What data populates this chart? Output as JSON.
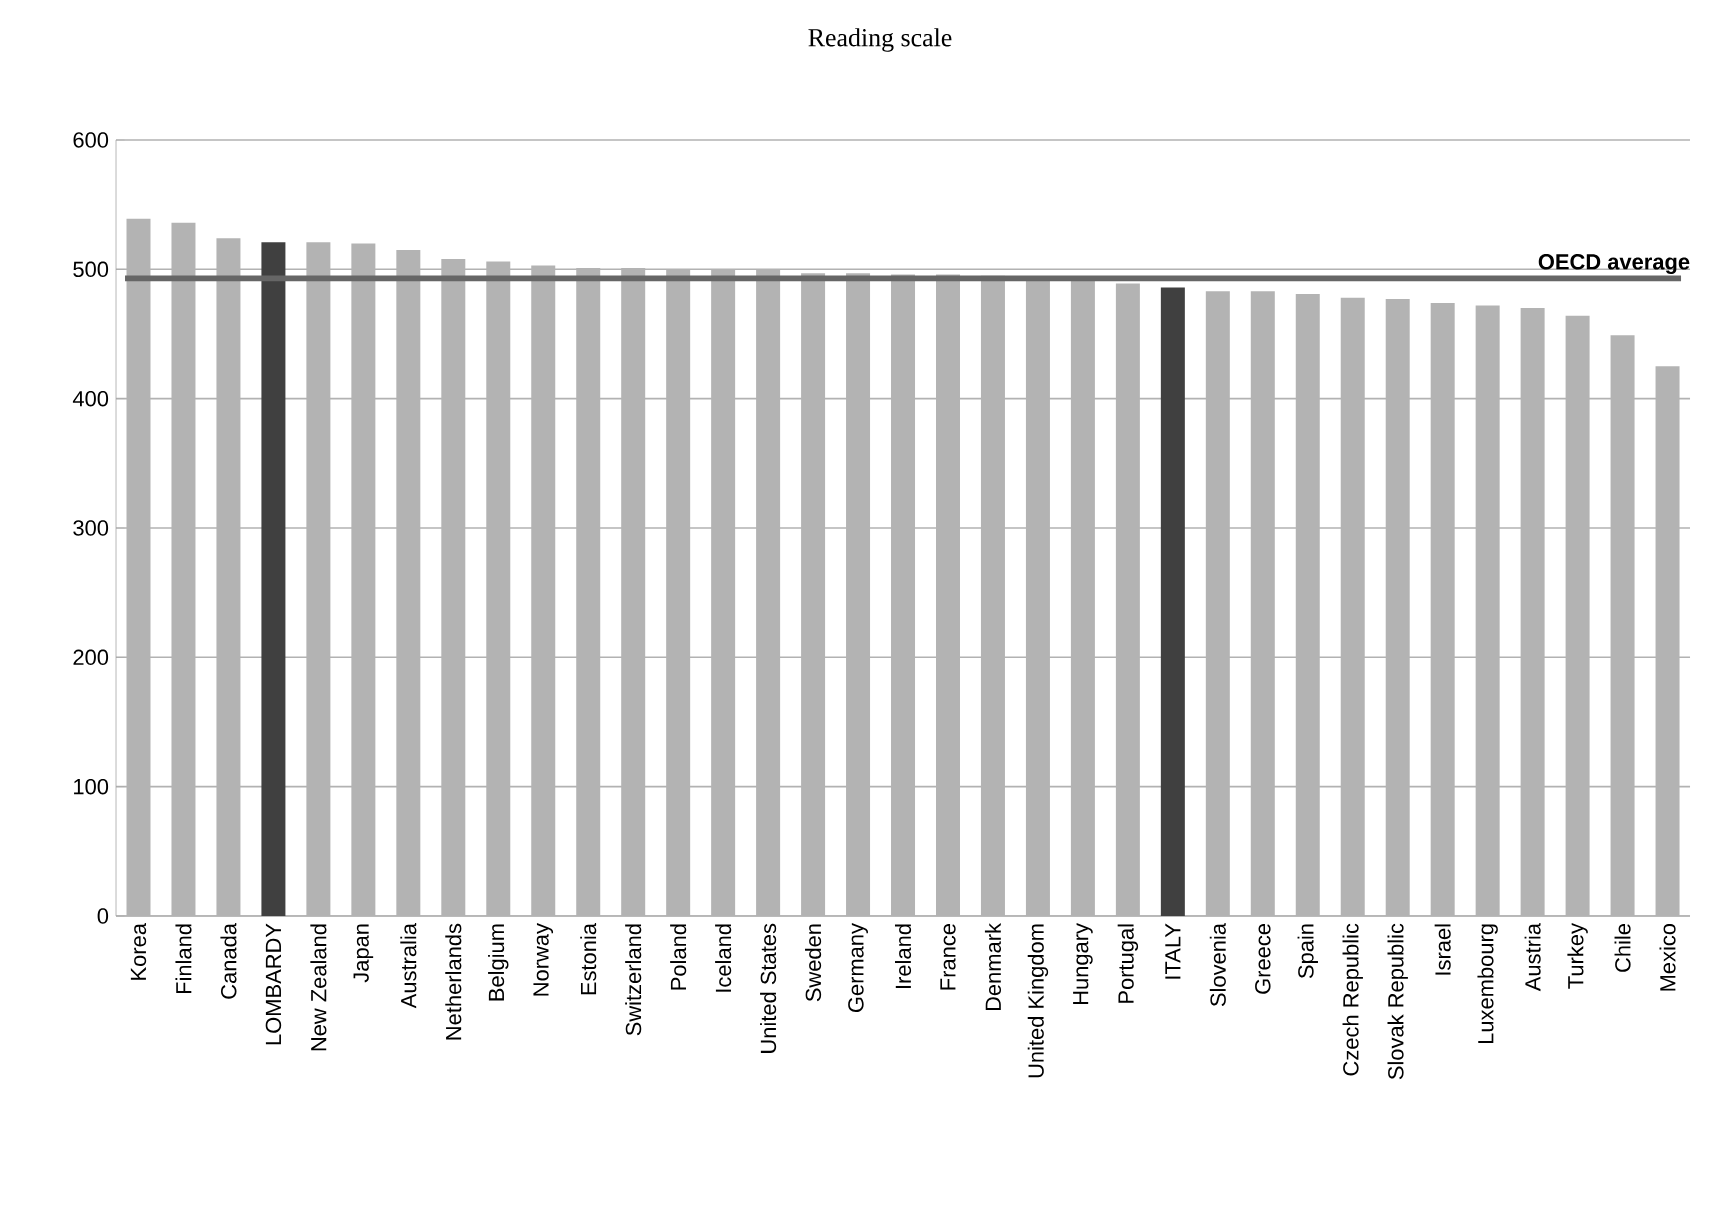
{
  "chart_data": {
    "type": "bar",
    "title": "Reading scale",
    "categories": [
      "Korea",
      "Finland",
      "Canada",
      "LOMBARDY",
      "New Zealand",
      "Japan",
      "Australia",
      "Netherlands",
      "Belgium",
      "Norway",
      "Estonia",
      "Switzerland",
      "Poland",
      "Iceland",
      "United States",
      "Sweden",
      "Germany",
      "Ireland",
      "France",
      "Denmark",
      "United Kingdom",
      "Hungary",
      "Portugal",
      "ITALY",
      "Slovenia",
      "Greece",
      "Spain",
      "Czech Republic",
      "Slovak Republic",
      "Israel",
      "Luxembourg",
      "Austria",
      "Turkey",
      "Chile",
      "Mexico"
    ],
    "values": [
      539,
      536,
      524,
      521,
      521,
      520,
      515,
      508,
      506,
      503,
      501,
      501,
      500,
      500,
      500,
      497,
      497,
      496,
      496,
      495,
      494,
      494,
      489,
      486,
      483,
      483,
      481,
      478,
      477,
      474,
      472,
      470,
      464,
      449,
      425
    ],
    "colors": [
      "#b3b3b3",
      "#b3b3b3",
      "#b3b3b3",
      "#404040",
      "#b3b3b3",
      "#b3b3b3",
      "#b3b3b3",
      "#b3b3b3",
      "#b3b3b3",
      "#b3b3b3",
      "#b3b3b3",
      "#b3b3b3",
      "#b3b3b3",
      "#b3b3b3",
      "#b3b3b3",
      "#b3b3b3",
      "#b3b3b3",
      "#b3b3b3",
      "#b3b3b3",
      "#b3b3b3",
      "#b3b3b3",
      "#b3b3b3",
      "#b3b3b3",
      "#404040",
      "#b3b3b3",
      "#b3b3b3",
      "#b3b3b3",
      "#b3b3b3",
      "#b3b3b3",
      "#b3b3b3",
      "#b3b3b3",
      "#b3b3b3",
      "#b3b3b3",
      "#b3b3b3",
      "#b3b3b3"
    ],
    "ylim": [
      0,
      600
    ],
    "yticks": [
      0,
      100,
      200,
      300,
      400,
      500,
      600
    ],
    "grid": "y",
    "ref_lines": [
      {
        "axis": "y",
        "value": 493,
        "label": "OECD average",
        "color": "#666666"
      }
    ]
  }
}
